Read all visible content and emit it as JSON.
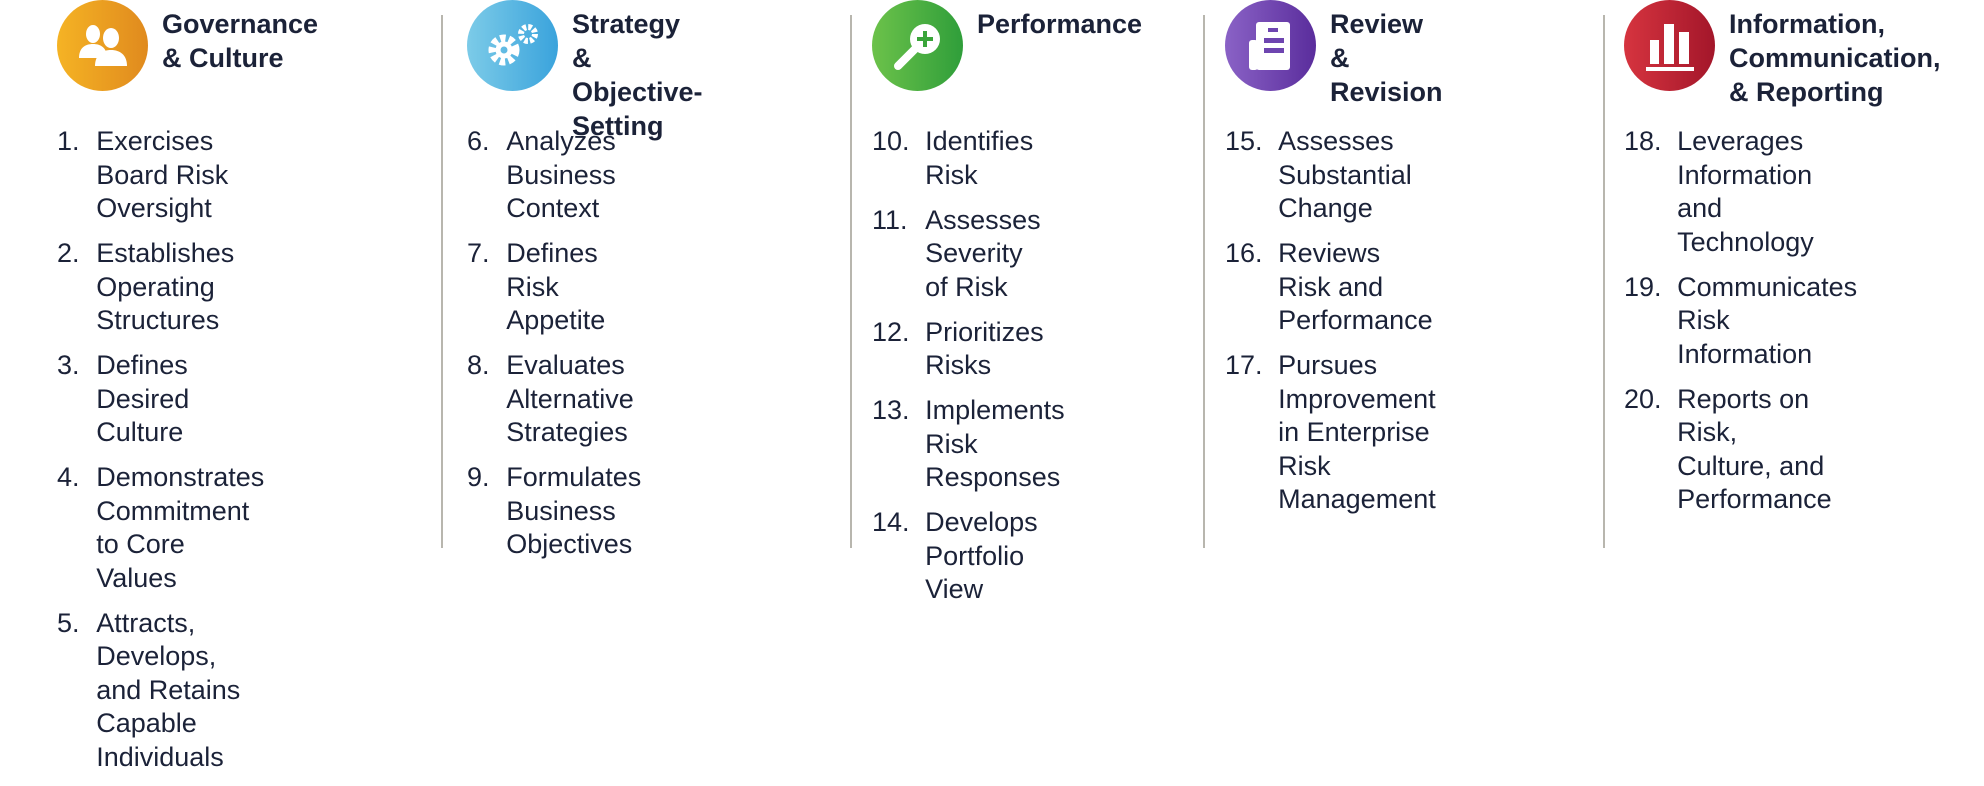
{
  "components": [
    {
      "title": "Governance\n& Culture",
      "icon": "people-icon",
      "color_from": "#f5b324",
      "color_to": "#e08a1e",
      "items": [
        {
          "num": "1.",
          "text": "Exercises Board Risk\nOversight"
        },
        {
          "num": "2.",
          "text": "Establishes Operating\nStructures"
        },
        {
          "num": "3.",
          "text": "Defines Desired Culture"
        },
        {
          "num": "4.",
          "text": "Demonstrates\nCommitment\nto Core Values"
        },
        {
          "num": "5.",
          "text": "Attracts, Develops,\nand Retains Capable\nIndividuals"
        }
      ]
    },
    {
      "title": "Strategy &\nObjective-Setting",
      "icon": "gears-icon",
      "color_from": "#7ccbe8",
      "color_to": "#3aa3dc",
      "items": [
        {
          "num": "6.",
          "text": "Analyzes Business\nContext"
        },
        {
          "num": "7.",
          "text": "Defines Risk Appetite"
        },
        {
          "num": "8.",
          "text": "Evaluates Alternative\nStrategies"
        },
        {
          "num": "9.",
          "text": "Formulates Business\nObjectives"
        }
      ]
    },
    {
      "title": "Performance",
      "icon": "magnifier-plus-icon",
      "color_from": "#6cc24a",
      "color_to": "#2f9e3a",
      "items": [
        {
          "num": "10.",
          "text": "Identifies Risk"
        },
        {
          "num": "11.",
          "text": "Assesses Severity\nof Risk"
        },
        {
          "num": "12.",
          "text": "Prioritizes Risks"
        },
        {
          "num": "13.",
          "text": "Implements Risk\nResponses"
        },
        {
          "num": "14.",
          "text": "Develops Portfolio\nView"
        }
      ]
    },
    {
      "title": "Review\n& Revision",
      "icon": "document-icon",
      "color_from": "#8a62c6",
      "color_to": "#5a2d9c",
      "items": [
        {
          "num": "15.",
          "text": "Assesses Substantial\nChange"
        },
        {
          "num": "16.",
          "text": "Reviews Risk and\nPerformance"
        },
        {
          "num": "17.",
          "text": "Pursues Improvement\nin Enterprise Risk\nManagement"
        }
      ]
    },
    {
      "title": "Information,\nCommunication,\n& Reporting",
      "icon": "bar-chart-icon",
      "color_from": "#d6343f",
      "color_to": "#a3162a",
      "items": [
        {
          "num": "18.",
          "text": "Leverages Information\nand Technology"
        },
        {
          "num": "19.",
          "text": "Communicates Risk\nInformation"
        },
        {
          "num": "20.",
          "text": "Reports on Risk,\nCulture, and\nPerformance"
        }
      ]
    }
  ]
}
